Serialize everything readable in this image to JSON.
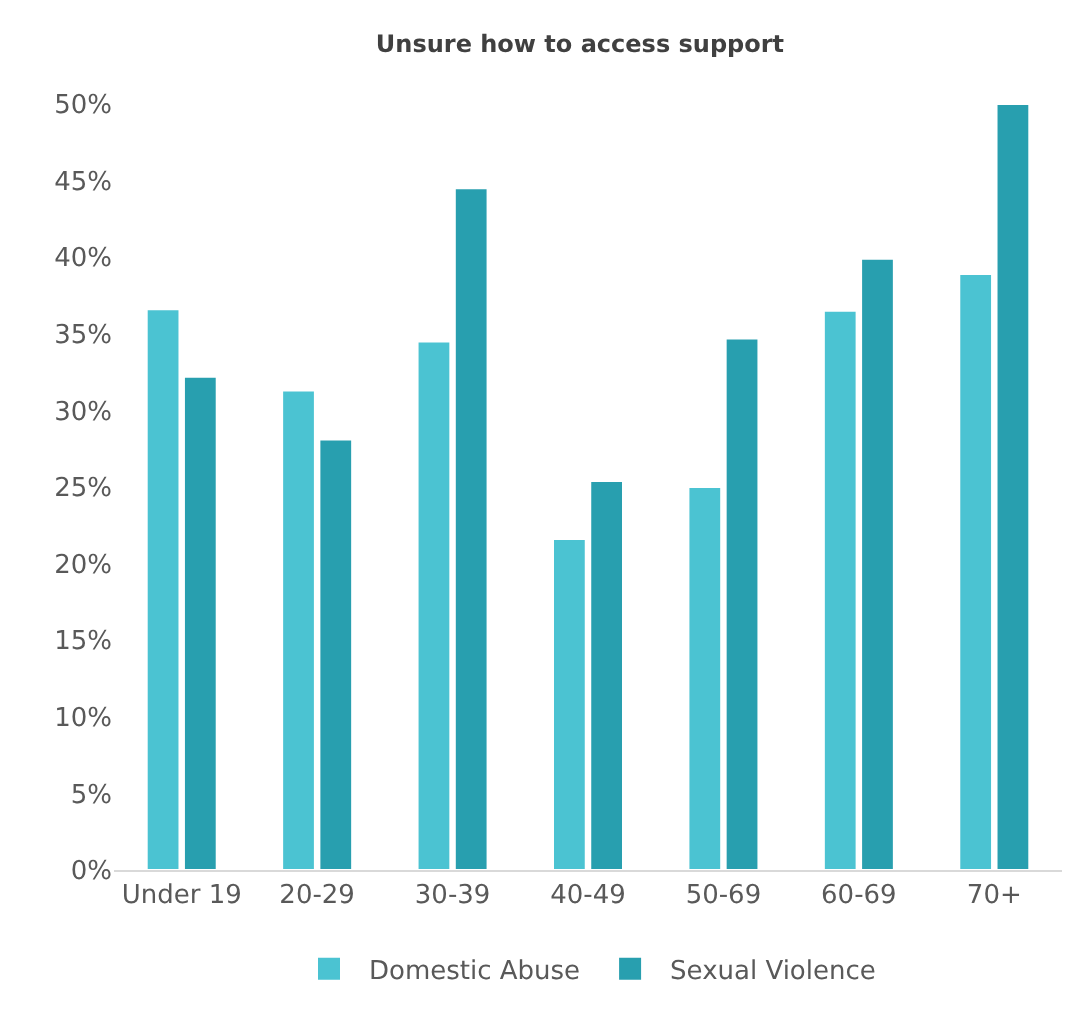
{
  "chart_data": {
    "type": "bar",
    "title": "Unsure how to access support",
    "categories": [
      "Under 19",
      "20-29",
      "30-39",
      "40-49",
      "50-69",
      "60-69",
      "70+"
    ],
    "series": [
      {
        "name": "Domestic Abuse",
        "color": "#4bc3d2",
        "values": [
          36.6,
          31.3,
          34.5,
          21.6,
          25.0,
          36.5,
          38.9
        ]
      },
      {
        "name": "Sexual Violence",
        "color": "#289faf",
        "values": [
          32.2,
          28.1,
          44.5,
          25.4,
          34.7,
          39.9,
          50.0
        ]
      }
    ],
    "ylim": [
      0,
      50
    ],
    "yticks": [
      {
        "value": 0,
        "label": "0%"
      },
      {
        "value": 5,
        "label": "5%"
      },
      {
        "value": 10,
        "label": "10%"
      },
      {
        "value": 15,
        "label": "15%"
      },
      {
        "value": 20,
        "label": "20%"
      },
      {
        "value": 25,
        "label": "25%"
      },
      {
        "value": 30,
        "label": "30%"
      },
      {
        "value": 35,
        "label": "35%"
      },
      {
        "value": 40,
        "label": "40%"
      },
      {
        "value": 45,
        "label": "45%"
      },
      {
        "value": 50,
        "label": "50%"
      }
    ],
    "grid": false,
    "legend": "bottom"
  }
}
